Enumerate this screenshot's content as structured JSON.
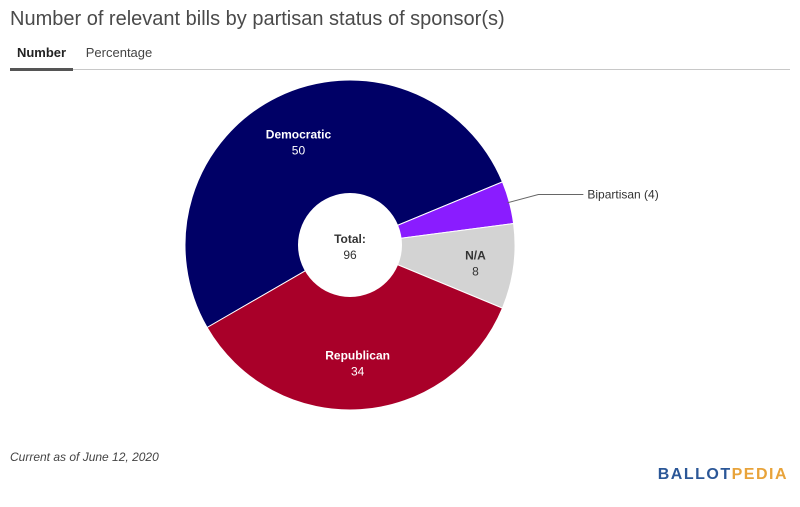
{
  "title": "Number of relevant bills by partisan status of sponsor(s)",
  "tabs": [
    {
      "label": "Number",
      "active": true
    },
    {
      "label": "Percentage",
      "active": false
    }
  ],
  "chart_data": {
    "type": "pie",
    "donut": true,
    "center_label": "Total:",
    "total": 96,
    "slices": [
      {
        "label": "Democratic",
        "value": 50,
        "color": "#000066"
      },
      {
        "label": "Bipartisan",
        "value": 4,
        "color": "#8a1cff",
        "external_label": "Bipartisan (4)"
      },
      {
        "label": "N/A",
        "value": 8,
        "color": "#d3d3d3"
      },
      {
        "label": "Republican",
        "value": 34,
        "color": "#a90029"
      }
    ]
  },
  "footnote": "Current as of June 12, 2020",
  "logo": {
    "part1": "BALLOT",
    "part2": "PEDIA"
  }
}
